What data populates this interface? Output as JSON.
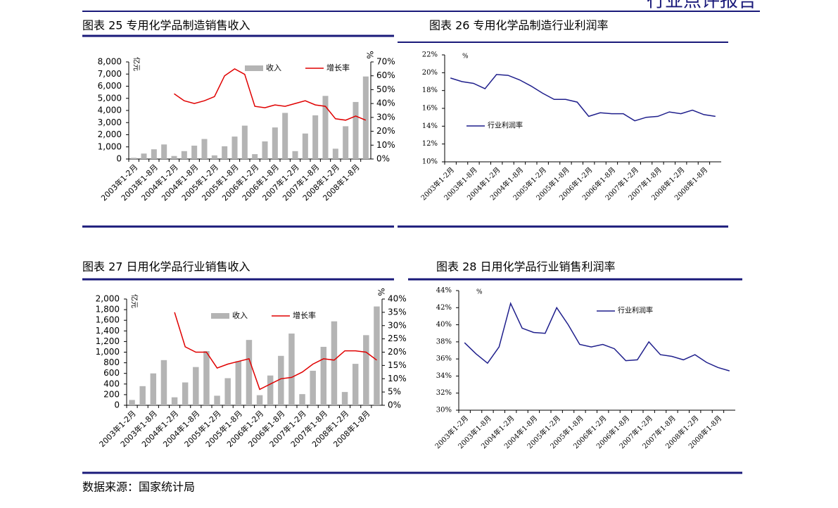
{
  "header": {
    "report_type": "行业点评报告"
  },
  "chart_data": [
    {
      "type": "bar",
      "title": "图表 25 专用化学品制造销售收入",
      "y_unit": "亿元",
      "y2_unit": "%",
      "categories": [
        "2003年1-2月",
        null,
        "2003年1-8月",
        null,
        "2004年1-2月",
        null,
        "2004年1-8月",
        null,
        "2005年1-2月",
        null,
        "2005年1-8月",
        null,
        "2006年1-2月",
        null,
        "2006年1-8月",
        null,
        "2007年1-2月",
        null,
        "2007年1-8月",
        null,
        "2008年1-2月",
        null,
        "2008年1-8月",
        null
      ],
      "series": [
        {
          "name": "收入",
          "color": "#b4b4b4",
          "values": [
            100,
            450,
            800,
            1200,
            250,
            650,
            1100,
            1650,
            300,
            1050,
            1850,
            2750,
            400,
            1450,
            2600,
            3800,
            650,
            2100,
            3600,
            5200,
            850,
            2700,
            4700,
            6800
          ]
        },
        {
          "name": "增长率",
          "color": "#e00000",
          "axis": "y2",
          "values": [
            null,
            null,
            null,
            null,
            47,
            42,
            40,
            42,
            45,
            60,
            65,
            61,
            38,
            37,
            39,
            38,
            40,
            42,
            39,
            38,
            29,
            28,
            31,
            28
          ]
        }
      ],
      "ylim": [
        0,
        8000
      ],
      "yticks": [
        0,
        {
          "value": 1000,
          "label": "1,000"
        },
        {
          "value": 2000,
          "label": "2,000"
        },
        {
          "value": 3000,
          "label": "3,000"
        },
        {
          "value": 4000,
          "label": "4,000"
        },
        {
          "value": 5000,
          "label": "5,000"
        },
        {
          "value": 6000,
          "label": "6,000"
        },
        {
          "value": 7000,
          "label": "7,000"
        },
        {
          "value": 8000,
          "label": "8,000"
        }
      ],
      "y2lim": [
        0,
        70
      ],
      "y2ticks": [
        {
          "value": 0,
          "label": "0%"
        },
        {
          "value": 10,
          "label": "10%"
        },
        {
          "value": 20,
          "label": "20%"
        },
        {
          "value": 30,
          "label": "30%"
        },
        {
          "value": 40,
          "label": "40%"
        },
        {
          "value": 50,
          "label": "50%"
        },
        {
          "value": 60,
          "label": "60%"
        },
        {
          "value": 70,
          "label": "70%"
        }
      ]
    },
    {
      "type": "line",
      "title": "图表 26 专用化学品制造行业利润率",
      "y_unit": "%",
      "categories": [
        "2003年1-2月",
        null,
        "2003年1-8月",
        null,
        "2004年1-2月",
        null,
        "2004年1-8月",
        null,
        "2005年1-2月",
        null,
        "2005年1-8月",
        null,
        "2006年1-2月",
        null,
        "2006年1-8月",
        null,
        "2007年1-2月",
        null,
        "2007年1-8月",
        null,
        "2008年1-2月",
        null,
        "2008年1-8月",
        null
      ],
      "series": [
        {
          "name": "行业利润率",
          "color": "#1f1f8c",
          "values": [
            19.4,
            19.0,
            18.8,
            18.2,
            19.8,
            19.7,
            19.2,
            18.5,
            17.7,
            17.0,
            17.0,
            16.7,
            15.1,
            15.5,
            15.4,
            15.4,
            14.6,
            15.0,
            15.1,
            15.6,
            15.4,
            15.8,
            15.3,
            15.1
          ]
        }
      ],
      "ylim": [
        10,
        22
      ],
      "yticks": [
        {
          "value": 10,
          "label": "10%"
        },
        {
          "value": 12,
          "label": "12%"
        },
        {
          "value": 14,
          "label": "14%"
        },
        {
          "value": 16,
          "label": "16%"
        },
        {
          "value": 18,
          "label": "18%"
        },
        {
          "value": 20,
          "label": "20%"
        },
        {
          "value": 22,
          "label": "22%"
        }
      ]
    },
    {
      "type": "bar",
      "title": "图表 27 日用化学品行业销售收入",
      "y_unit": "亿元",
      "y2_unit": "%",
      "categories": [
        "2003年1-2月",
        null,
        "2003年1-8月",
        null,
        "2004年1-2月",
        null,
        "2004年1-8月",
        null,
        "2005年1-2月",
        null,
        "2005年1-8月",
        null,
        "2006年1-2月",
        null,
        "2006年1-8月",
        null,
        "2007年1-2月",
        null,
        "2007年1-8月",
        null,
        "2008年1-2月",
        null,
        "2008年1-8月",
        null
      ],
      "series": [
        {
          "name": "收入",
          "color": "#b4b4b4",
          "values": [
            100,
            360,
            600,
            850,
            150,
            430,
            720,
            1020,
            180,
            510,
            830,
            1230,
            190,
            560,
            930,
            1350,
            210,
            650,
            1100,
            1580,
            250,
            780,
            1320,
            1860
          ]
        },
        {
          "name": "增长率",
          "color": "#e00000",
          "axis": "y2",
          "values": [
            null,
            null,
            null,
            null,
            35,
            22,
            20,
            20,
            14,
            15.5,
            16.5,
            17.5,
            6,
            8,
            10,
            10.5,
            12.5,
            15.5,
            17.5,
            17,
            20.5,
            20.5,
            20,
            17
          ]
        }
      ],
      "ylim": [
        0,
        2000
      ],
      "yticks": [
        0,
        200,
        400,
        600,
        800,
        {
          "value": 1000,
          "label": "1,000"
        },
        {
          "value": 1200,
          "label": "1,200"
        },
        {
          "value": 1400,
          "label": "1,400"
        },
        {
          "value": 1600,
          "label": "1,600"
        },
        {
          "value": 1800,
          "label": "1,800"
        },
        {
          "value": 2000,
          "label": "2,000"
        }
      ],
      "y2lim": [
        0,
        40
      ],
      "y2ticks": [
        {
          "value": 0,
          "label": "0%"
        },
        {
          "value": 5,
          "label": "5%"
        },
        {
          "value": 10,
          "label": "10%"
        },
        {
          "value": 15,
          "label": "15%"
        },
        {
          "value": 20,
          "label": "20%"
        },
        {
          "value": 25,
          "label": "25%"
        },
        {
          "value": 30,
          "label": "30%"
        },
        {
          "value": 35,
          "label": "35%"
        },
        {
          "value": 40,
          "label": "40%"
        }
      ]
    },
    {
      "type": "line",
      "title": "图表 28 日用化学品行业销售利润率",
      "y_unit": "%",
      "categories": [
        "2003年1-2月",
        null,
        "2003年1-8月",
        null,
        "2004年1-2月",
        null,
        "2004年1-8月",
        null,
        "2005年1-2月",
        null,
        "2005年1-8月",
        null,
        "2006年1-2月",
        null,
        "2006年1-8月",
        null,
        "2007年1-2月",
        null,
        "2007年1-8月",
        null,
        "2008年1-2月",
        null,
        "2008年1-8月",
        null
      ],
      "series": [
        {
          "name": "行业利润率",
          "color": "#1f1f8c",
          "values": [
            37.9,
            36.6,
            35.5,
            37.4,
            42.5,
            39.6,
            39.1,
            39.0,
            42.0,
            40.0,
            37.7,
            37.4,
            37.7,
            37.2,
            35.8,
            35.9,
            38.0,
            36.5,
            36.3,
            35.9,
            36.5,
            35.6,
            35.0,
            34.6
          ]
        }
      ],
      "ylim": [
        30,
        44
      ],
      "yticks": [
        {
          "value": 30,
          "label": "30%"
        },
        {
          "value": 32,
          "label": "32%"
        },
        {
          "value": 34,
          "label": "34%"
        },
        {
          "value": 36,
          "label": "36%"
        },
        {
          "value": 38,
          "label": "38%"
        },
        {
          "value": 40,
          "label": "40%"
        },
        {
          "value": 42,
          "label": "42%"
        },
        {
          "value": 44,
          "label": "44%"
        }
      ]
    }
  ],
  "footer": {
    "source": "数据来源：国家统计局"
  }
}
